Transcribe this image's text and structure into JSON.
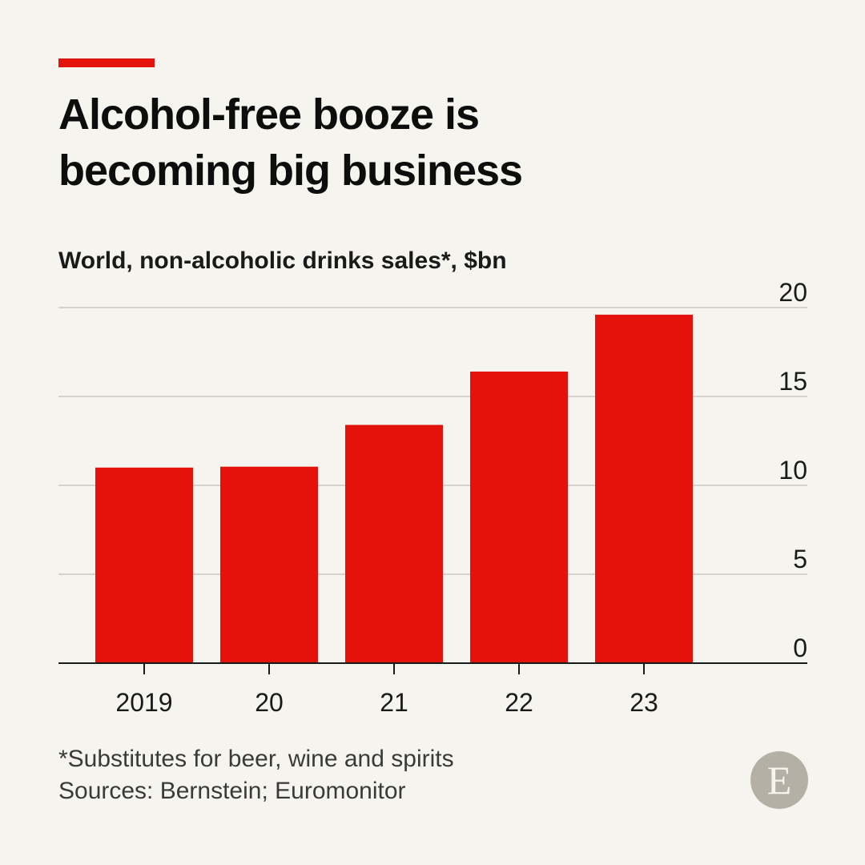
{
  "header": {
    "title_lines": [
      "Alcohol-free booze is",
      "becoming big business"
    ],
    "subtitle": "World, non-alcoholic drinks sales*, $bn"
  },
  "colors": {
    "accent": "#e3120b",
    "bar": "#e3120b",
    "gridline": "#d4d2cc",
    "axis": "#1a1a1a",
    "background": "#f5f4ef",
    "logo_circle": "#b5b0a6"
  },
  "chart_data": {
    "type": "bar",
    "categories": [
      "2019",
      "20",
      "21",
      "22",
      "23"
    ],
    "values": [
      11.0,
      11.05,
      13.4,
      16.4,
      19.6
    ],
    "title": "Alcohol-free booze is becoming big business",
    "subtitle": "World, non-alcoholic drinks sales*, $bn",
    "xlabel": "",
    "ylabel": "",
    "ylim": [
      0,
      20
    ],
    "yticks": [
      0,
      5,
      10,
      15,
      20
    ],
    "ytick_labels": [
      "0",
      "5",
      "10",
      "15",
      "20"
    ],
    "y_axis_side": "right",
    "grid": true,
    "legend": "none"
  },
  "footer": {
    "footnote": "*Substitutes for beer, wine and spirits",
    "sources": "Sources: Bernstein; Euromonitor"
  },
  "logo": {
    "letter": "E",
    "icon": "economist-logo-icon"
  }
}
